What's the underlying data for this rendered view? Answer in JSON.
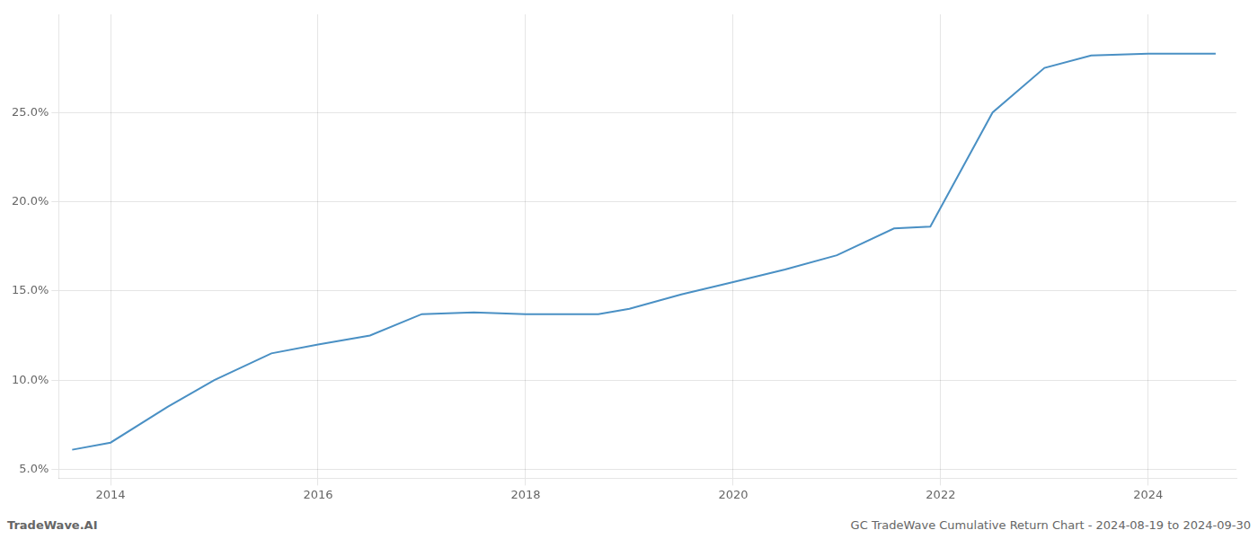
{
  "chart_data": {
    "type": "line",
    "x": [
      2013.63,
      2014.0,
      2014.55,
      2015.0,
      2015.55,
      2016.0,
      2016.5,
      2017.0,
      2017.5,
      2018.0,
      2018.4,
      2018.7,
      2019.0,
      2019.5,
      2020.0,
      2020.5,
      2021.0,
      2021.55,
      2021.9,
      2022.5,
      2023.0,
      2023.45,
      2024.0,
      2024.65
    ],
    "values": [
      6.1,
      6.5,
      8.5,
      10.0,
      11.5,
      12.0,
      12.5,
      13.7,
      13.8,
      13.7,
      13.7,
      13.7,
      14.0,
      14.8,
      15.5,
      16.2,
      17.0,
      18.5,
      18.6,
      25.0,
      27.5,
      28.2,
      28.3,
      28.3
    ],
    "color": "#4a90c4",
    "xlim": [
      2013.5,
      2024.85
    ],
    "ylim": [
      4.5,
      30.5
    ],
    "xticks": [
      2014,
      2016,
      2018,
      2020,
      2022,
      2024
    ],
    "yticks": [
      {
        "value": 5.0,
        "label": "5.0%"
      },
      {
        "value": 10.0,
        "label": "10.0%"
      },
      {
        "value": 15.0,
        "label": "15.0%"
      },
      {
        "value": 20.0,
        "label": "20.0%"
      },
      {
        "value": 25.0,
        "label": "25.0%"
      }
    ],
    "grid": true,
    "annotations": [
      "TradeWave.AI",
      "GC TradeWave Cumulative Return Chart - 2024-08-19 to 2024-09-30"
    ]
  }
}
